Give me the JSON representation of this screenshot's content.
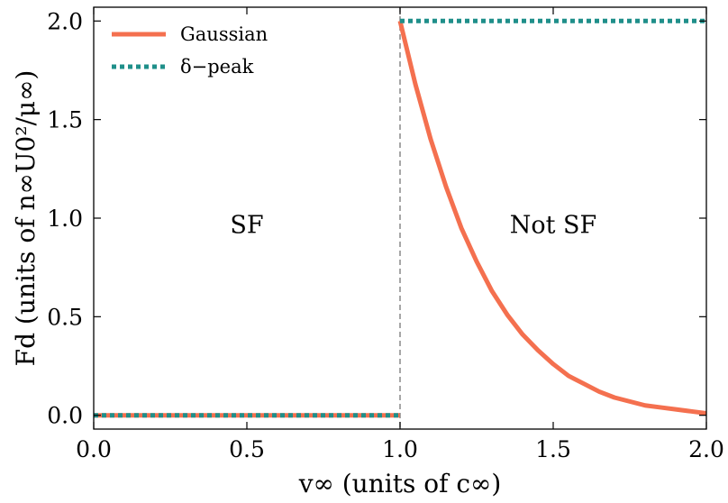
{
  "chart_data": {
    "type": "line",
    "title": "",
    "xlabel": "v∞ (units of c∞)",
    "ylabel": "Fd (units of n∞U0²/μ∞)",
    "xlim": [
      0.0,
      2.0
    ],
    "ylim": [
      -0.07,
      2.07
    ],
    "x_ticks": [
      0.0,
      0.5,
      1.0,
      1.5,
      2.0
    ],
    "x_tick_labels": [
      "0.0",
      "0.5",
      "1.0",
      "1.5",
      "2.0"
    ],
    "y_ticks": [
      0.0,
      0.5,
      1.0,
      1.5,
      2.0
    ],
    "y_tick_labels": [
      "0.0",
      "0.5",
      "1.0",
      "1.5",
      "2.0"
    ],
    "grid": false,
    "legend_position": "top-left",
    "threshold_line": {
      "x": 1.0,
      "style": "dashed",
      "color": "#888888"
    },
    "regions": [
      {
        "label": "SF",
        "x": 0.5,
        "y": 0.97
      },
      {
        "label": "Not SF",
        "x": 1.5,
        "y": 0.97
      }
    ],
    "series": [
      {
        "name": "Gaussian",
        "style": "solid",
        "color": "#f4704f",
        "segments": [
          {
            "x": [
              0.0,
              0.999
            ],
            "y": [
              0.0,
              0.0
            ]
          },
          {
            "x": [
              1.0,
              1.05,
              1.1,
              1.15,
              1.2,
              1.25,
              1.3,
              1.35,
              1.4,
              1.45,
              1.5,
              1.55,
              1.6,
              1.65,
              1.7,
              1.75,
              1.8,
              1.85,
              1.9,
              1.95,
              2.0
            ],
            "y": [
              2.0,
              1.68,
              1.4,
              1.16,
              0.95,
              0.78,
              0.63,
              0.51,
              0.41,
              0.33,
              0.26,
              0.2,
              0.16,
              0.12,
              0.09,
              0.07,
              0.05,
              0.04,
              0.03,
              0.02,
              0.01
            ]
          }
        ]
      },
      {
        "name": "δ−peak",
        "style": "dotted",
        "color": "#1f8f8a",
        "segments": [
          {
            "x": [
              0.0,
              0.999
            ],
            "y": [
              0.0,
              0.0
            ]
          },
          {
            "x": [
              1.0,
              2.0
            ],
            "y": [
              2.0,
              2.0
            ]
          }
        ]
      }
    ]
  }
}
